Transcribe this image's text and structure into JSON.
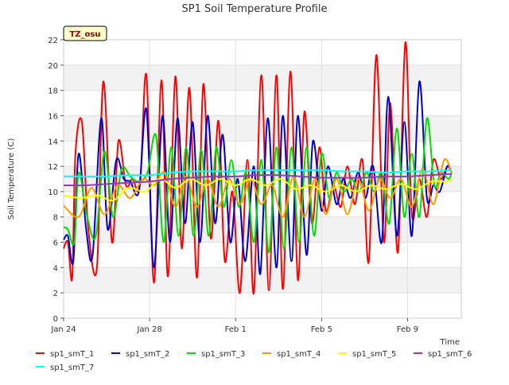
{
  "chart_data": {
    "type": "line",
    "title": "SP1 Soil Temperature Profile",
    "xlabel": "Time",
    "ylabel": "Soil Temperature (C)",
    "timezone_badge": "TZ_osu",
    "ylim": [
      0,
      22
    ],
    "xlim_days": [
      0,
      18.5
    ],
    "yticks": [
      0,
      2,
      4,
      6,
      8,
      10,
      12,
      14,
      16,
      18,
      20,
      22
    ],
    "xticks": [
      {
        "day": 0,
        "label": "Jan 24"
      },
      {
        "day": 4,
        "label": "Jan 28"
      },
      {
        "day": 8,
        "label": "Feb 1"
      },
      {
        "day": 12,
        "label": "Feb 5"
      },
      {
        "day": 16,
        "label": "Feb 9"
      }
    ],
    "band_shading": true,
    "legend_position": "bottom",
    "series": [
      {
        "name": "sp1_smT_1",
        "color": "#ff0000",
        "x": [
          0.0,
          0.2,
          0.4,
          0.55,
          0.85,
          1.15,
          1.55,
          1.85,
          2.25,
          2.55,
          2.9,
          3.2,
          3.55,
          3.85,
          4.2,
          4.55,
          4.85,
          5.2,
          5.5,
          5.85,
          6.2,
          6.5,
          6.85,
          7.2,
          7.5,
          7.85,
          8.2,
          8.55,
          8.85,
          9.2,
          9.55,
          9.9,
          10.2,
          10.55,
          10.9,
          11.2,
          11.55,
          11.9,
          12.2,
          12.55,
          12.9,
          13.2,
          13.55,
          13.9,
          14.2,
          14.55,
          14.9,
          15.2,
          15.55,
          15.9,
          16.2,
          16.55,
          16.9,
          17.2,
          17.55,
          17.85,
          18.05
        ],
        "y": [
          5.5,
          6.0,
          3.2,
          13.0,
          15.5,
          7.0,
          4.0,
          18.7,
          6.0,
          14.0,
          10.5,
          11.0,
          10.5,
          19.2,
          2.8,
          18.8,
          3.3,
          19.1,
          5.5,
          18.2,
          3.2,
          18.5,
          6.3,
          15.6,
          4.5,
          10.0,
          2.0,
          12.5,
          2.0,
          19.2,
          2.2,
          19.2,
          2.3,
          19.5,
          3.0,
          16.3,
          7.5,
          13.5,
          8.5,
          10.5,
          8.8,
          12.0,
          9.0,
          12.5,
          4.5,
          20.8,
          6.0,
          17.0,
          5.2,
          21.8,
          8.2,
          11.0,
          8.0,
          12.5,
          11.0,
          12.0,
          11.5
        ]
      },
      {
        "name": "sp1_smT_2",
        "color": "#0000cc",
        "x": [
          0.0,
          0.2,
          0.45,
          0.7,
          1.05,
          1.35,
          1.75,
          2.05,
          2.45,
          2.8,
          3.1,
          3.5,
          3.85,
          4.2,
          4.6,
          4.95,
          5.3,
          5.65,
          6.0,
          6.35,
          6.7,
          7.05,
          7.4,
          7.75,
          8.1,
          8.45,
          8.85,
          9.15,
          9.5,
          9.9,
          10.2,
          10.6,
          10.9,
          11.3,
          11.6,
          12.0,
          12.3,
          12.7,
          13.0,
          13.35,
          13.7,
          14.05,
          14.4,
          14.8,
          15.1,
          15.5,
          15.85,
          16.2,
          16.55,
          16.9,
          17.2,
          17.5,
          17.85,
          18.05
        ],
        "y": [
          6.2,
          6.5,
          4.5,
          13.0,
          7.0,
          5.0,
          15.8,
          7.0,
          12.5,
          11.0,
          10.8,
          10.0,
          16.5,
          4.0,
          16.0,
          6.0,
          15.8,
          7.5,
          15.5,
          6.0,
          16.0,
          7.5,
          14.5,
          6.0,
          11.0,
          4.5,
          12.0,
          3.5,
          15.8,
          4.0,
          16.0,
          4.5,
          16.0,
          5.0,
          14.0,
          8.5,
          12.0,
          9.0,
          11.0,
          9.5,
          11.5,
          9.5,
          12.0,
          6.0,
          17.5,
          6.5,
          15.5,
          6.5,
          18.7,
          9.5,
          10.5,
          10.0,
          12.0,
          11.5
        ]
      },
      {
        "name": "sp1_smT_3",
        "color": "#00dd00",
        "x": [
          0.0,
          0.2,
          0.5,
          0.7,
          1.1,
          1.5,
          1.9,
          2.3,
          2.7,
          3.1,
          3.5,
          3.9,
          4.3,
          4.65,
          5.0,
          5.35,
          5.7,
          6.05,
          6.4,
          6.75,
          7.1,
          7.45,
          7.8,
          8.15,
          8.5,
          8.85,
          9.2,
          9.55,
          9.9,
          10.25,
          10.6,
          10.95,
          11.3,
          11.65,
          12.0,
          12.35,
          12.7,
          13.05,
          13.4,
          13.75,
          14.1,
          14.45,
          14.8,
          15.15,
          15.5,
          15.85,
          16.2,
          16.55,
          16.9,
          17.25,
          17.55,
          17.9,
          18.05
        ],
        "y": [
          7.2,
          7.0,
          6.0,
          11.5,
          8.0,
          6.5,
          13.2,
          8.0,
          11.8,
          11.2,
          10.8,
          11.5,
          14.4,
          6.0,
          13.5,
          6.5,
          13.5,
          6.5,
          13.3,
          6.5,
          13.5,
          8.8,
          12.5,
          8.8,
          11.5,
          6.0,
          12.5,
          5.2,
          13.5,
          5.5,
          13.5,
          6.0,
          13.5,
          6.5,
          13.0,
          9.5,
          11.5,
          10.0,
          11.0,
          10.0,
          11.5,
          10.0,
          11.5,
          7.5,
          15.0,
          8.0,
          13.0,
          8.0,
          15.8,
          10.5,
          11.5,
          11.0,
          11.5
        ]
      },
      {
        "name": "sp1_smT_4",
        "color": "#ff9900",
        "x": [
          0.0,
          0.7,
          1.3,
          1.9,
          2.5,
          3.1,
          3.7,
          4.2,
          4.7,
          5.2,
          5.7,
          6.2,
          6.7,
          7.2,
          7.7,
          8.2,
          8.7,
          9.2,
          9.7,
          10.2,
          10.7,
          11.2,
          11.7,
          12.2,
          12.7,
          13.2,
          13.7,
          14.2,
          14.7,
          15.2,
          15.7,
          16.2,
          16.7,
          17.2,
          17.7,
          18.05
        ],
        "y": [
          8.9,
          8.0,
          10.3,
          8.2,
          10.5,
          9.5,
          11.0,
          10.5,
          11.5,
          8.8,
          11.2,
          8.8,
          11.0,
          8.8,
          11.0,
          9.0,
          11.0,
          9.0,
          10.5,
          8.0,
          11.2,
          8.0,
          11.0,
          8.2,
          11.0,
          8.2,
          11.0,
          8.5,
          11.0,
          9.5,
          11.0,
          8.8,
          11.8,
          9.0,
          12.5,
          11.5
        ]
      },
      {
        "name": "sp1_smT_5",
        "color": "#ffff00",
        "x": [
          0.0,
          0.8,
          1.6,
          2.3,
          3.0,
          3.8,
          4.5,
          5.2,
          5.9,
          6.6,
          7.3,
          8.0,
          8.7,
          9.4,
          10.1,
          10.8,
          11.5,
          12.2,
          12.9,
          13.6,
          14.3,
          15.0,
          15.7,
          16.4,
          17.1,
          17.8,
          18.05
        ],
        "y": [
          9.7,
          9.5,
          9.7,
          9.3,
          10.3,
          10.0,
          11.0,
          10.3,
          11.0,
          10.5,
          11.0,
          10.5,
          11.0,
          10.5,
          11.0,
          10.2,
          10.5,
          10.0,
          10.5,
          10.0,
          10.5,
          10.2,
          10.6,
          10.2,
          10.8,
          10.8,
          11.0
        ]
      },
      {
        "name": "sp1_smT_6",
        "color": "#9933cc",
        "x": [
          0.0,
          1.0,
          2.0,
          3.0,
          4.0,
          5.0,
          6.0,
          7.0,
          8.0,
          9.0,
          10.0,
          11.0,
          12.0,
          13.0,
          14.0,
          15.0,
          16.0,
          17.0,
          18.05
        ],
        "y": [
          10.5,
          10.5,
          10.6,
          10.7,
          10.8,
          11.0,
          11.1,
          11.2,
          11.2,
          11.3,
          11.3,
          11.2,
          11.1,
          11.1,
          11.1,
          11.2,
          11.2,
          11.3,
          11.4
        ]
      },
      {
        "name": "sp1_smT_7",
        "color": "#00ffff",
        "x": [
          0.0,
          1.0,
          2.0,
          3.0,
          4.0,
          5.0,
          6.0,
          7.0,
          8.0,
          9.0,
          10.0,
          11.0,
          12.0,
          13.0,
          14.0,
          15.0,
          16.0,
          17.0,
          18.05
        ],
        "y": [
          11.2,
          11.2,
          11.2,
          11.3,
          11.3,
          11.5,
          11.6,
          11.6,
          11.6,
          11.7,
          11.7,
          11.7,
          11.7,
          11.6,
          11.6,
          11.5,
          11.6,
          11.6,
          11.7
        ]
      }
    ]
  }
}
